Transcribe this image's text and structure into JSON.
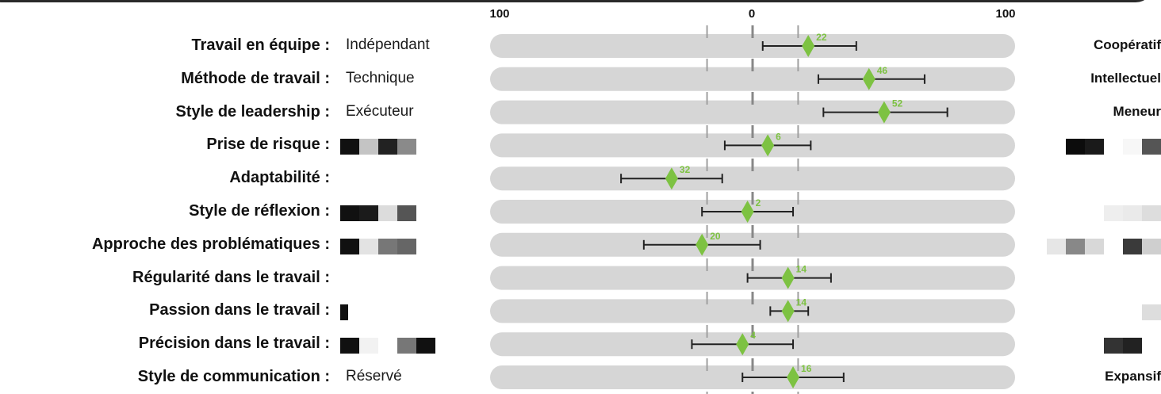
{
  "chart_data": {
    "type": "scatter",
    "title": "",
    "x_axis": {
      "min": -100,
      "max": 100,
      "tick_labels": [
        "100",
        "0",
        "100"
      ],
      "tick_values": [
        -100,
        0,
        100
      ]
    },
    "reference_lines": [
      -18,
      0,
      18
    ],
    "rows": [
      {
        "label": "Travail en équipe :",
        "left_pole": "Indépendant",
        "right_pole": "Coopératif",
        "value": 22,
        "value_label": "22",
        "low": 4,
        "high": 41
      },
      {
        "label": "Méthode de travail :",
        "left_pole": "Technique",
        "right_pole": "Intellectuel",
        "value": 46,
        "value_label": "46",
        "low": 26,
        "high": 68
      },
      {
        "label": "Style de leadership :",
        "left_pole": "Exécuteur",
        "right_pole": "Meneur",
        "value": 52,
        "value_label": "52",
        "low": 28,
        "high": 77
      },
      {
        "label": "Prise de risque :",
        "left_pole": "",
        "right_pole": "",
        "value": 6,
        "value_label": "6",
        "low": -11,
        "high": 23
      },
      {
        "label": "Adaptabilité :",
        "left_pole": "",
        "right_pole": "",
        "value": -32,
        "value_label": "32",
        "low": -52,
        "high": -12
      },
      {
        "label": "Style de réflexion :",
        "left_pole": "",
        "right_pole": "",
        "value": -2,
        "value_label": "2",
        "low": -20,
        "high": 16
      },
      {
        "label": "Approche des problématiques :",
        "left_pole": "",
        "right_pole": "",
        "value": -20,
        "value_label": "20",
        "low": -43,
        "high": 3
      },
      {
        "label": "Régularité dans le travail :",
        "left_pole": "",
        "right_pole": "",
        "value": 14,
        "value_label": "14",
        "low": -2,
        "high": 31
      },
      {
        "label": "Passion dans le travail :",
        "left_pole": "",
        "right_pole": "",
        "value": 14,
        "value_label": "14",
        "low": 7,
        "high": 22
      },
      {
        "label": "Précision dans le travail :",
        "left_pole": "",
        "right_pole": "",
        "value": -4,
        "value_label": "4",
        "low": -24,
        "high": 16
      },
      {
        "label": "Style de communication :",
        "left_pole": "Réservé",
        "right_pole": "Expansif",
        "value": 16,
        "value_label": "16",
        "low": -4,
        "high": 36
      }
    ],
    "colors": {
      "track": "#d6d6d6",
      "marker": "#7dc242",
      "value_text": "#7dc242",
      "error_bar": "#222222",
      "reference_line": "#a0a0a0",
      "center_line": "#888888"
    }
  },
  "redacted_blocks": [
    {
      "row": 3,
      "side": "left",
      "cells": [
        "#111111",
        "#c4c4c4",
        "#222222",
        "#8a8a8a"
      ]
    },
    {
      "row": 5,
      "side": "left",
      "cells": [
        "#111111",
        "#1b1b1b",
        "#dcdcdc",
        "#555555"
      ]
    },
    {
      "row": 6,
      "side": "left",
      "cells": [
        "#111111",
        "#e3e3e3",
        "#777777",
        "#666666"
      ]
    },
    {
      "row": 8,
      "side": "left",
      "cells": [
        "#111111"
      ]
    },
    {
      "row": 9,
      "side": "left",
      "cells": [
        "#111111",
        "#f2f2f2",
        "#ffffff",
        "#777777",
        "#111111"
      ]
    },
    {
      "row": 3,
      "side": "right",
      "cells": [
        "#0c0c0c",
        "#1a1a1a",
        "#ffffff",
        "#f7f7f7",
        "#555555"
      ]
    },
    {
      "row": 5,
      "side": "right",
      "cells": [
        "#eeeeee",
        "#eaeaea",
        "#dddddd"
      ]
    },
    {
      "row": 6,
      "side": "right",
      "cells": [
        "#e6e6e6",
        "#888888",
        "#d8d8d8",
        "#ffffff",
        "#3a3a3a",
        "#cfcfcf"
      ]
    },
    {
      "row": 8,
      "side": "right",
      "cells": [
        "#dddddd"
      ]
    },
    {
      "row": 9,
      "side": "right",
      "cells": [
        "#333333",
        "#222222",
        "#ffffff"
      ]
    }
  ]
}
